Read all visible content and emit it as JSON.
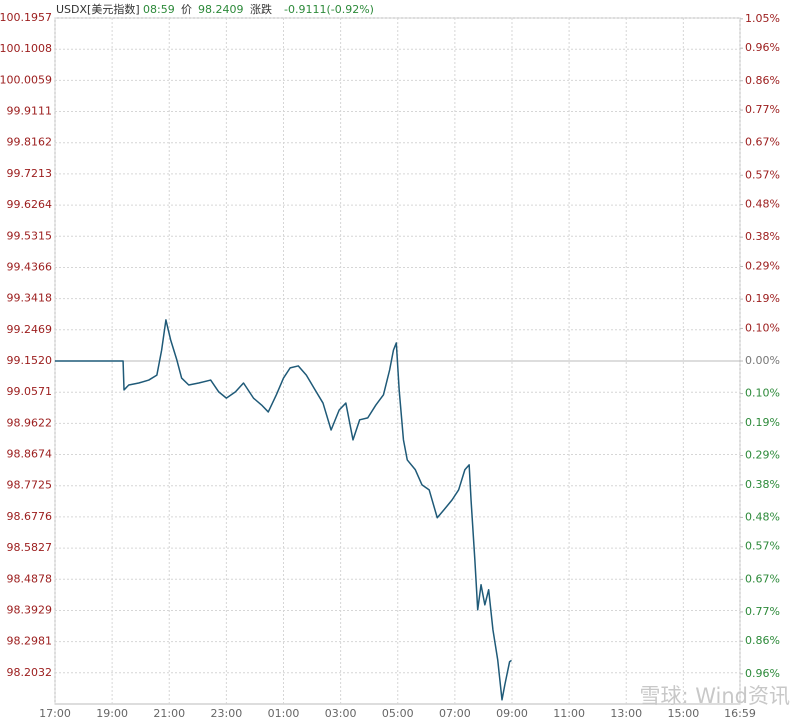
{
  "header": {
    "symbol": "USDX[美元指数]",
    "time": "08:59",
    "price_label": "价",
    "price": "98.2409",
    "change_label": "涨跌",
    "change": "-0.9111(-0.92%)"
  },
  "watermark": "雪球: Wind资讯",
  "chart_data": {
    "type": "line",
    "x": [
      "17:00",
      "19:23",
      "19:25",
      "19:35",
      "19:56",
      "20:17",
      "20:34",
      "20:44",
      "20:53",
      "21:03",
      "21:16",
      "21:26",
      "21:41",
      "22:02",
      "22:27",
      "22:44",
      "23:00",
      "23:19",
      "23:36",
      "23:57",
      "00:14",
      "00:28",
      "00:45",
      "01:00",
      "01:14",
      "01:31",
      "01:48",
      "02:04",
      "02:23",
      "02:40",
      "02:57",
      "03:11",
      "03:26",
      "03:40",
      "03:57",
      "04:14",
      "04:30",
      "04:43",
      "04:51",
      "04:57",
      "05:03",
      "05:12",
      "05:20",
      "05:37",
      "05:51",
      "06:06",
      "06:23",
      "06:37",
      "06:54",
      "07:08",
      "07:21",
      "07:30",
      "07:34",
      "07:42",
      "07:48",
      "07:55",
      "08:03",
      "08:11",
      "08:20",
      "08:30",
      "08:39",
      "08:45",
      "08:55",
      "08:59"
    ],
    "series": [
      {
        "name": "USDX",
        "color": "#1f5a78",
        "values": [
          99.152,
          99.152,
          99.064,
          99.079,
          99.085,
          99.094,
          99.109,
          99.185,
          99.277,
          99.216,
          99.155,
          99.1,
          99.079,
          99.085,
          99.094,
          99.058,
          99.039,
          99.058,
          99.085,
          99.039,
          99.018,
          98.997,
          99.049,
          99.1,
          99.131,
          99.137,
          99.109,
          99.07,
          99.024,
          98.942,
          99.003,
          99.024,
          98.912,
          98.973,
          98.979,
          99.018,
          99.049,
          99.125,
          99.185,
          99.207,
          99.064,
          98.912,
          98.851,
          98.821,
          98.775,
          98.76,
          98.675,
          98.699,
          98.729,
          98.76,
          98.821,
          98.836,
          98.729,
          98.547,
          98.395,
          98.471,
          98.41,
          98.456,
          98.334,
          98.243,
          98.121,
          98.167,
          98.237,
          98.2409
        ]
      }
    ],
    "xlim": [
      "17:00",
      "16:59"
    ],
    "xticks": [
      "17:00",
      "19:00",
      "21:00",
      "23:00",
      "01:00",
      "03:00",
      "05:00",
      "07:00",
      "09:00",
      "11:00",
      "13:00",
      "15:00",
      "16:59"
    ],
    "ylim": [
      98.1083,
      100.1957
    ],
    "yticks": [
      100.1957,
      100.1008,
      100.0059,
      99.9111,
      99.8162,
      99.7213,
      99.6264,
      99.5315,
      99.4366,
      99.3418,
      99.2469,
      {
        "value": 99.152,
        "label": "99.1520"
      },
      99.0571,
      98.9622,
      98.8674,
      98.7725,
      98.6776,
      98.5827,
      98.4878,
      98.3929,
      98.2981,
      98.2032
    ],
    "y2lim": [
      -1.0526,
      1.0526
    ],
    "y2ticks": [
      {
        "value": 1.05,
        "label": "1.05%"
      },
      {
        "value": 0.96,
        "label": "0.96%"
      },
      {
        "value": 0.86,
        "label": "0.86%"
      },
      {
        "value": 0.77,
        "label": "0.77%"
      },
      {
        "value": 0.67,
        "label": "0.67%"
      },
      {
        "value": 0.57,
        "label": "0.57%"
      },
      {
        "value": 0.48,
        "label": "0.48%"
      },
      {
        "value": 0.38,
        "label": "0.38%"
      },
      {
        "value": 0.29,
        "label": "0.29%"
      },
      {
        "value": 0.19,
        "label": "0.19%"
      },
      {
        "value": 0.1,
        "label": "0.10%"
      },
      {
        "value": 0,
        "label": "0.00%"
      },
      {
        "value": -0.1,
        "label": "0.10%"
      },
      {
        "value": -0.19,
        "label": "0.19%"
      },
      {
        "value": -0.29,
        "label": "0.29%"
      },
      {
        "value": -0.38,
        "label": "0.38%"
      },
      {
        "value": -0.48,
        "label": "0.48%"
      },
      {
        "value": -0.57,
        "label": "0.57%"
      },
      {
        "value": -0.67,
        "label": "0.67%"
      },
      {
        "value": -0.77,
        "label": "0.77%"
      },
      {
        "value": -0.86,
        "label": "0.86%"
      },
      {
        "value": -0.96,
        "label": "0.96%"
      }
    ],
    "baseline": {
      "value": 99.152,
      "label": "99.1520"
    },
    "grid": true,
    "up_color": "#9b1c1c",
    "down_color": "#2d8a3a",
    "zero_color": "#777777"
  }
}
